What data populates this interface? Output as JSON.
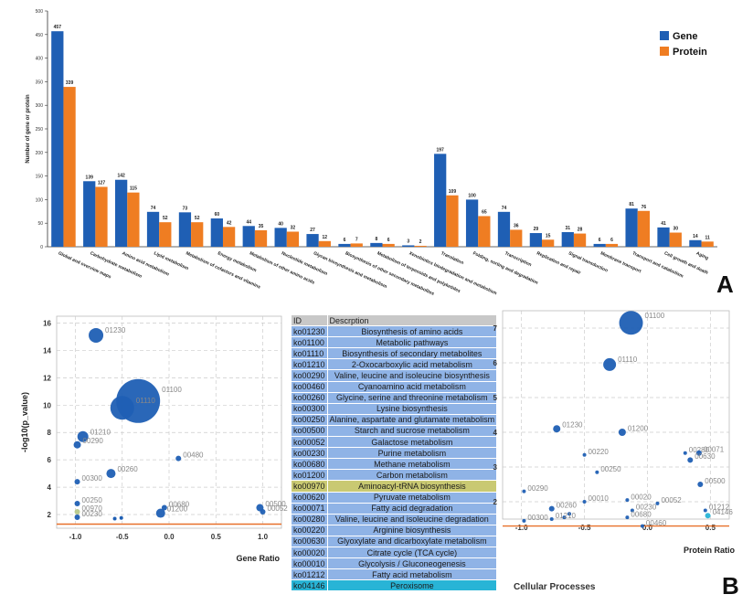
{
  "chart_data": [
    {
      "type": "bar",
      "categories": [
        "Global and overview maps",
        "Carbohydrate metabolism",
        "Amino acid metabolism",
        "Lipid metabolism",
        "Metabolism of cofactors and vitamins",
        "Energy metabolism",
        "Metabolism of other amino acids",
        "Nucleotide metabolism",
        "Glycan biosynthesis and metabolism",
        "Biosynthesis of other secondary metabolites",
        "Metabolism of terpenoids and polyketides",
        "Xenobiotics biodegradation and metabolism",
        "Translation",
        "Folding, sorting and degradation",
        "Transcription",
        "Replication and repair",
        "Signal transduction",
        "Membrane transport",
        "Transport and catabolism",
        "Cell growth and death",
        "Aging"
      ],
      "series": [
        {
          "name": "Gene",
          "color": "#1f5fb4",
          "values": [
            457,
            139,
            142,
            74,
            73,
            60,
            44,
            40,
            27,
            6,
            8,
            3,
            197,
            100,
            74,
            29,
            31,
            6,
            81,
            41,
            14
          ]
        },
        {
          "name": "Protein",
          "color": "#ef7d22",
          "values": [
            339,
            127,
            115,
            52,
            52,
            42,
            35,
            32,
            12,
            7,
            6,
            2,
            109,
            65,
            36,
            15,
            28,
            6,
            76,
            30,
            11
          ]
        }
      ],
      "ylabel": "Number of gene or protein",
      "ylim": [
        0,
        500
      ],
      "yticks": [
        0,
        50,
        100,
        150,
        200,
        250,
        300,
        350,
        400,
        450,
        500
      ],
      "legend_position": "top-right",
      "panel_label": "A"
    },
    {
      "type": "scatter",
      "xlabel": "Gene Ratio",
      "ylabel": "-log10(p_value)",
      "xlim": [
        -1.2,
        1.2
      ],
      "ylim": [
        1,
        16.5
      ],
      "xticks": [
        -1.0,
        -0.5,
        0.0,
        0.5,
        1.0
      ],
      "xtick_labels": [
        "-1.0",
        "-0.5",
        "0.0",
        "0.5",
        "1.0"
      ],
      "yticks": [
        2,
        4,
        6,
        8,
        10,
        12,
        14,
        16
      ],
      "threshold": 1.3,
      "points": [
        {
          "label": "01230",
          "x": -0.78,
          "y": 15.1,
          "size": 8,
          "color": "#1f5fb4"
        },
        {
          "label": "01100",
          "x": -0.33,
          "y": 10.3,
          "size": 24,
          "color": "#1f5fb4"
        },
        {
          "label": "01110",
          "x": -0.5,
          "y": 9.8,
          "size": 13,
          "color": "#1f5fb4"
        },
        {
          "label": "01210",
          "x": -0.92,
          "y": 7.7,
          "size": 6,
          "color": "#1f5fb4"
        },
        {
          "label": "00290",
          "x": -0.98,
          "y": 7.1,
          "size": 4,
          "color": "#1f5fb4"
        },
        {
          "label": "00480",
          "x": 0.1,
          "y": 6.1,
          "size": 3,
          "color": "#1f5fb4"
        },
        {
          "label": "00260",
          "x": -0.62,
          "y": 5.0,
          "size": 5,
          "color": "#1f5fb4"
        },
        {
          "label": "00300",
          "x": -0.98,
          "y": 4.4,
          "size": 3,
          "color": "#1f5fb4"
        },
        {
          "label": "00250",
          "x": -0.98,
          "y": 2.8,
          "size": 3,
          "color": "#1f5fb4"
        },
        {
          "label": "00680",
          "x": -0.05,
          "y": 2.5,
          "size": 3,
          "color": "#1f5fb4"
        },
        {
          "label": "00500",
          "x": 0.97,
          "y": 2.5,
          "size": 4,
          "color": "#1f5fb4"
        },
        {
          "label": "00970",
          "x": -0.98,
          "y": 2.2,
          "size": 3,
          "color": "#b8c98a"
        },
        {
          "label": "01200",
          "x": -0.09,
          "y": 2.1,
          "size": 5,
          "color": "#1f5fb4"
        },
        {
          "label": "00230",
          "x": -0.98,
          "y": 1.8,
          "size": 3,
          "color": "#1f5fb4"
        },
        {
          "label": "00052",
          "x": 1.0,
          "y": 2.2,
          "size": 3,
          "color": "#1f5fb4"
        }
      ],
      "extra_points": [
        {
          "x": -0.58,
          "y": 1.7,
          "size": 2,
          "color": "#1f5fb4"
        },
        {
          "x": -0.51,
          "y": 1.75,
          "size": 2,
          "color": "#1f5fb4"
        }
      ]
    },
    {
      "type": "table",
      "columns": [
        "ID",
        "Descrption"
      ],
      "rows": [
        [
          "ko01230",
          "Biosynthesis of amino acids"
        ],
        [
          "ko01100",
          "Metabolic pathways"
        ],
        [
          "ko01110",
          "Biosynthesis of secondary metabolites"
        ],
        [
          "ko01210",
          "2-Oxocarboxylic acid metabolism"
        ],
        [
          "ko00290",
          "Valine, leucine and isoleucine biosynthesis"
        ],
        [
          "ko00460",
          "Cyanoamino acid metabolism"
        ],
        [
          "ko00260",
          "Glycine, serine and threonine metabolism"
        ],
        [
          "ko00300",
          "Lysine biosynthesis"
        ],
        [
          "ko00250",
          "Alanine, aspartate and glutamate metabolism"
        ],
        [
          "ko00500",
          "Starch and sucrose metabolism"
        ],
        [
          "ko00052",
          "Galactose metabolism"
        ],
        [
          "ko00230",
          "Purine metabolism"
        ],
        [
          "ko00680",
          "Methane metabolism"
        ],
        [
          "ko01200",
          "Carbon metabolism"
        ],
        [
          "ko00970",
          "Aminoacyl-tRNA biosynthesis"
        ],
        [
          "ko00620",
          "Pyruvate metabolism"
        ],
        [
          "ko00071",
          "Fatty acid degradation"
        ],
        [
          "ko00280",
          "Valine, leucine and isoleucine degradation"
        ],
        [
          "ko00220",
          "Arginine biosynthesis"
        ],
        [
          "ko00630",
          "Glyoxylate and dicarboxylate metabolism"
        ],
        [
          "ko00020",
          "Citrate cycle (TCA cycle)"
        ],
        [
          "ko00010",
          "Glycolysis / Gluconeogenesis"
        ],
        [
          "ko01212",
          "Fatty acid metabolism"
        ],
        [
          "ko04146",
          "Peroxisome"
        ]
      ],
      "highlight_rows": {
        "14": "olive",
        "23": "cyan"
      }
    },
    {
      "type": "scatter",
      "xlabel": "Protein Ratio",
      "ylim": [
        1.5,
        7.5
      ],
      "xlim": [
        -1.15,
        0.65
      ],
      "xticks": [
        -1.0,
        -0.5,
        0.0,
        0.5
      ],
      "xtick_labels": [
        "-1.0",
        "-0.5",
        "0.0",
        "0.5"
      ],
      "yticks": [
        2,
        3,
        4,
        5,
        6,
        7
      ],
      "threshold": 1.3,
      "points": [
        {
          "label": "01100",
          "x": -0.13,
          "y": 7.15,
          "size": 13,
          "color": "#1f5fb4"
        },
        {
          "label": "01110",
          "x": -0.3,
          "y": 5.95,
          "size": 7,
          "color": "#1f5fb4"
        },
        {
          "label": "01230",
          "x": -0.72,
          "y": 4.1,
          "size": 4,
          "color": "#1f5fb4"
        },
        {
          "label": "01200",
          "x": -0.2,
          "y": 4.0,
          "size": 4,
          "color": "#1f5fb4"
        },
        {
          "label": "00220",
          "x": -0.5,
          "y": 3.35,
          "size": 2,
          "color": "#1f5fb4"
        },
        {
          "label": "00280",
          "x": 0.3,
          "y": 3.4,
          "size": 2,
          "color": "#1f5fb4"
        },
        {
          "label": "00071",
          "x": 0.41,
          "y": 3.4,
          "size": 3,
          "color": "#1f5fb4"
        },
        {
          "label": "00630",
          "x": 0.34,
          "y": 3.2,
          "size": 3,
          "color": "#1f5fb4"
        },
        {
          "label": "00250",
          "x": -0.4,
          "y": 2.85,
          "size": 2,
          "color": "#1f5fb4"
        },
        {
          "label": "00500",
          "x": 0.42,
          "y": 2.5,
          "size": 3,
          "color": "#1f5fb4"
        },
        {
          "label": "00290",
          "x": -0.98,
          "y": 2.3,
          "size": 2,
          "color": "#1f5fb4"
        },
        {
          "label": "00020",
          "x": -0.16,
          "y": 2.05,
          "size": 2,
          "color": "#1f5fb4"
        },
        {
          "label": "00010",
          "x": -0.5,
          "y": 2.0,
          "size": 2,
          "color": "#1f5fb4"
        },
        {
          "label": "00052",
          "x": 0.08,
          "y": 1.95,
          "size": 2,
          "color": "#1f5fb4"
        },
        {
          "label": "00260",
          "x": -0.76,
          "y": 1.8,
          "size": 3,
          "color": "#1f5fb4"
        },
        {
          "label": "00230",
          "x": -0.12,
          "y": 1.75,
          "size": 2,
          "color": "#1f5fb4"
        },
        {
          "label": "01212",
          "x": 0.46,
          "y": 1.75,
          "size": 2,
          "color": "#1f5fb4"
        },
        {
          "label": "04146",
          "x": 0.48,
          "y": 1.6,
          "size": 3,
          "color": "#28b4d6"
        },
        {
          "label": "01210",
          "x": -0.76,
          "y": 1.5,
          "size": 2,
          "color": "#1f5fb4"
        },
        {
          "label": "00300",
          "x": -0.98,
          "y": 1.45,
          "size": 2,
          "color": "#1f5fb4"
        },
        {
          "label": "00680",
          "x": -0.16,
          "y": 1.55,
          "size": 2,
          "color": "#1f5fb4"
        },
        {
          "label": "00460",
          "x": -0.04,
          "y": 1.3,
          "size": 2,
          "color": "#1f5fb4"
        }
      ],
      "extra_points": [
        {
          "x": -0.62,
          "y": 1.65,
          "size": 2,
          "color": "#1f5fb4"
        },
        {
          "x": -0.66,
          "y": 1.55,
          "size": 2,
          "color": "#1f5fb4"
        }
      ],
      "legend_text": "Cellular Processes",
      "panel_label": "B"
    }
  ]
}
